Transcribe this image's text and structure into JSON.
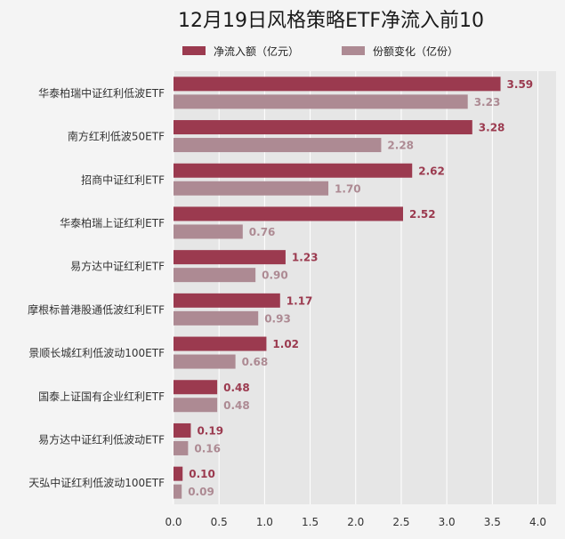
{
  "chart_data": {
    "type": "bar",
    "orientation": "horizontal",
    "title": "12月19日风格策略ETF净流入前10",
    "categories": [
      "华泰柏瑞中证红利低波ETF",
      "南方红利低波50ETF",
      "招商中证红利ETF",
      "华泰柏瑞上证红利ETF",
      "易方达中证红利ETF",
      "摩根标普港股通低波红利ETF",
      "景顺长城红利低波动100ETF",
      "国泰上证国有企业红利ETF",
      "易方达中证红利低波动ETF",
      "天弘中证红利低波动100ETF"
    ],
    "series": [
      {
        "name": "净流入额（亿元）",
        "color": "#9b3a4f",
        "values": [
          3.59,
          3.28,
          2.62,
          2.52,
          1.23,
          1.17,
          1.02,
          0.48,
          0.19,
          0.1
        ],
        "labels": [
          "3.59",
          "3.28",
          "2.62",
          "2.52",
          "1.23",
          "1.17",
          "1.02",
          "0.48",
          "0.19",
          "0.10"
        ]
      },
      {
        "name": "份额变化（亿份）",
        "color": "#ad8a93",
        "values": [
          3.23,
          2.28,
          1.7,
          0.76,
          0.9,
          0.93,
          0.68,
          0.48,
          0.16,
          0.09
        ],
        "labels": [
          "3.23",
          "2.28",
          "1.70",
          "0.76",
          "0.90",
          "0.93",
          "0.68",
          "0.48",
          "0.16",
          "0.09"
        ]
      }
    ],
    "xlim": [
      0,
      4.2
    ],
    "x_ticks": [
      0,
      0.5,
      1,
      1.5,
      2,
      2.5,
      3,
      3.5,
      4
    ],
    "x_tick_labels": [
      "0.0",
      "0.5",
      "1.0",
      "1.5",
      "2.0",
      "2.5",
      "3.0",
      "3.5",
      "4.0"
    ],
    "grid": "vertical",
    "legend_position": "top-center",
    "plot_background": "#e6e6e6"
  }
}
